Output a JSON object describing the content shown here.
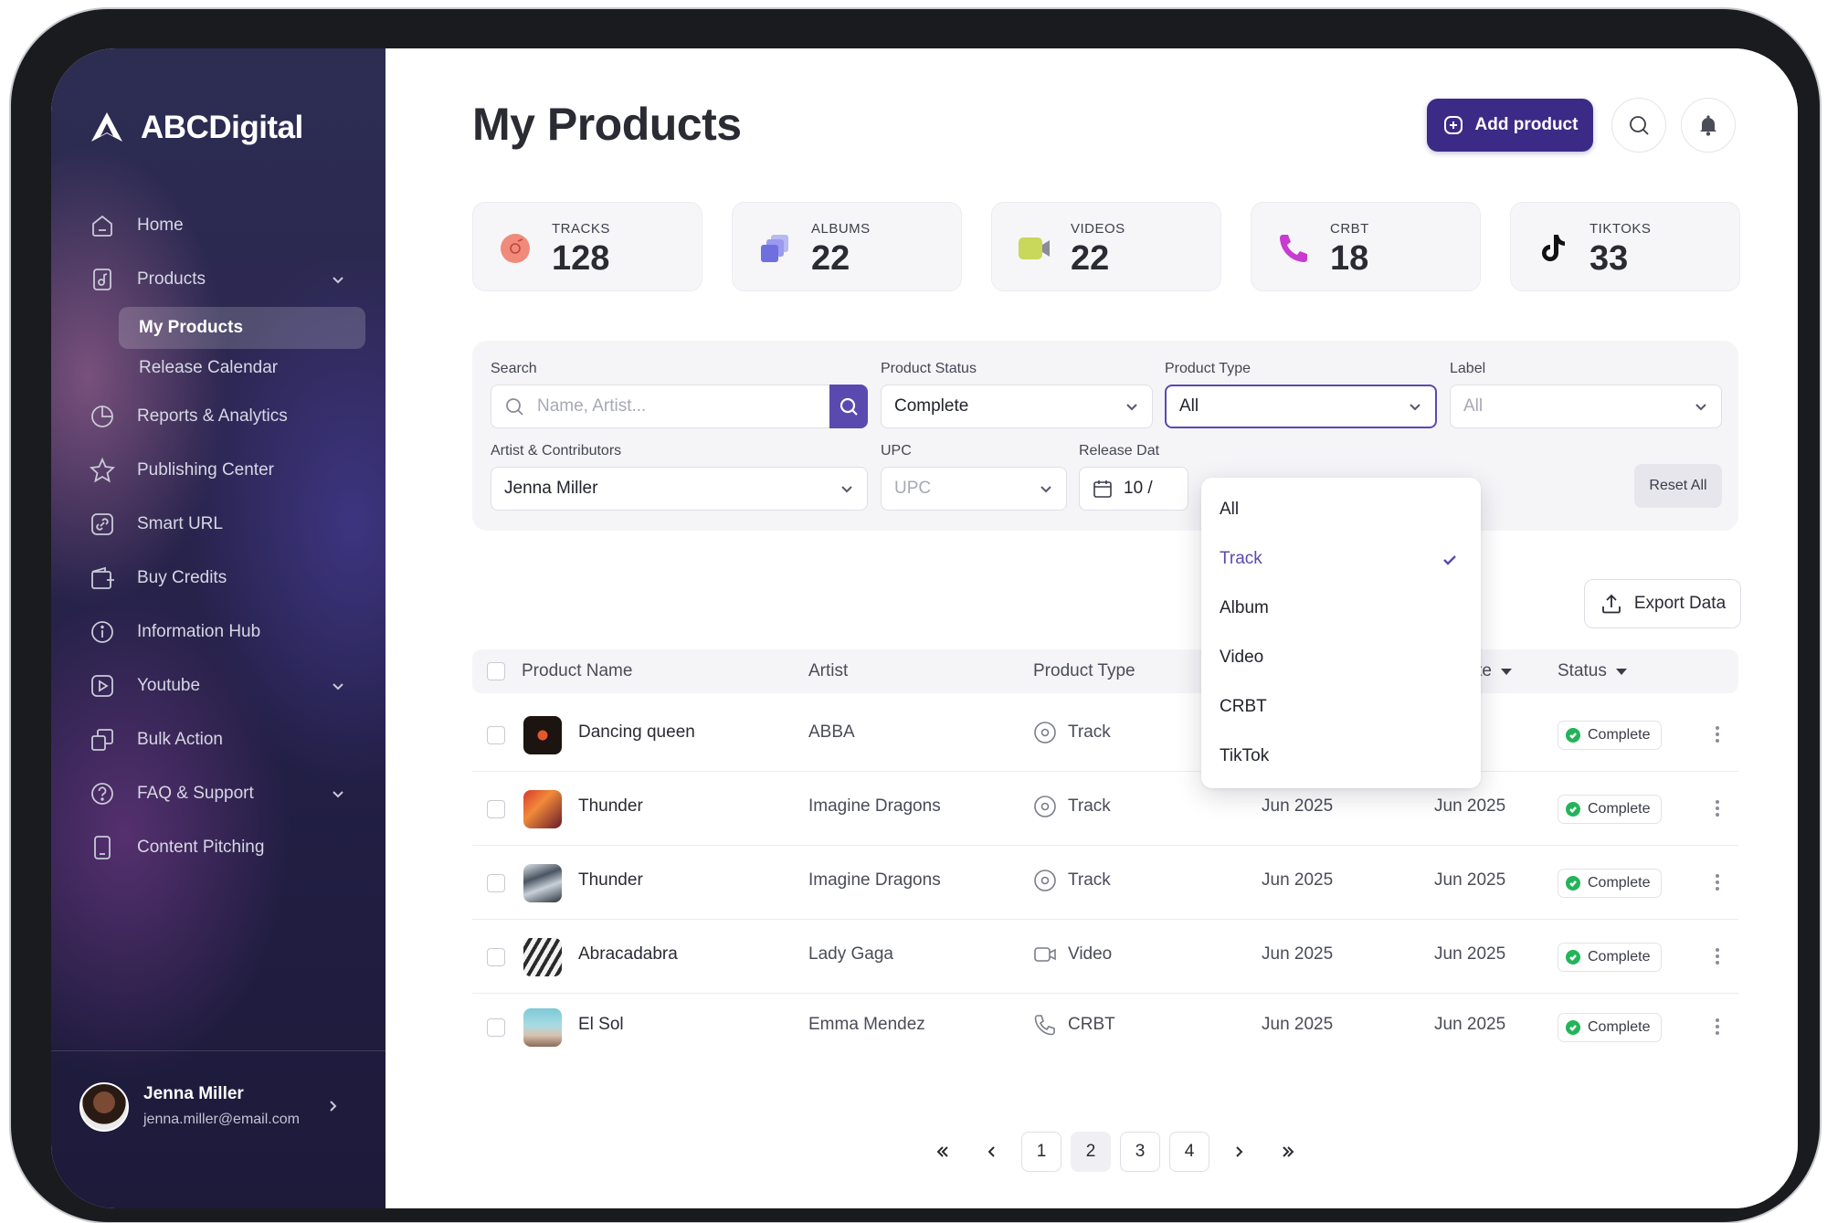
{
  "brand": {
    "name": "ABCDigital"
  },
  "sidebar": {
    "items": [
      {
        "label": "Home",
        "icon": "home-icon"
      },
      {
        "label": "Products",
        "icon": "products-icon",
        "expandable": true
      },
      {
        "label": "Reports & Analytics",
        "icon": "pie-chart-icon"
      },
      {
        "label": "Publishing Center",
        "icon": "star-icon"
      },
      {
        "label": "Smart URL",
        "icon": "link-icon"
      },
      {
        "label": "Buy Credits",
        "icon": "wallet-icon"
      },
      {
        "label": "Information Hub",
        "icon": "info-icon"
      },
      {
        "label": "Youtube",
        "icon": "play-icon",
        "expandable": true
      },
      {
        "label": "Bulk Action",
        "icon": "copy-icon"
      },
      {
        "label": "FAQ & Support",
        "icon": "question-icon",
        "expandable": true
      },
      {
        "label": "Content Pitching",
        "icon": "tablet-icon"
      }
    ],
    "sub_items": [
      {
        "label": "My Products",
        "active": true
      },
      {
        "label": "Release Calendar",
        "active": false
      }
    ],
    "user": {
      "name": "Jenna Miller",
      "email": "jenna.miller@email.com"
    }
  },
  "header": {
    "title": "My Products",
    "add_button": "Add product"
  },
  "stats": [
    {
      "label": "TRACKS",
      "value": "128",
      "icon": "disc-icon",
      "color": "#f08a7a"
    },
    {
      "label": "ALBUMS",
      "value": "22",
      "icon": "albums-icon",
      "color": "#7c7ce6"
    },
    {
      "label": "VIDEOS",
      "value": "22",
      "icon": "video-camera-icon",
      "color": "#c9d75a"
    },
    {
      "label": "CRBT",
      "value": "18",
      "icon": "phone-icon",
      "color": "#c83bd0"
    },
    {
      "label": "TIKTOKS",
      "value": "33",
      "icon": "tiktok-icon",
      "color": "#111111"
    }
  ],
  "filters": {
    "search": {
      "label": "Search",
      "placeholder": "Name, Artist..."
    },
    "product_status": {
      "label": "Product Status",
      "value": "Complete"
    },
    "product_type": {
      "label": "Product Type",
      "value": "All"
    },
    "label": {
      "label": "Label",
      "placeholder": "All"
    },
    "artist": {
      "label": "Artist & Contributors",
      "value": "Jenna Miller"
    },
    "upc": {
      "label": "UPC",
      "placeholder": "UPC"
    },
    "release_date": {
      "label": "Release Dat",
      "value": "10 /"
    },
    "reset": "Reset All"
  },
  "dropdown": {
    "options": [
      "All",
      "Track",
      "Album",
      "Video",
      "CRBT",
      "TikTok"
    ],
    "selected": "Track"
  },
  "export_button": "Export Data",
  "table": {
    "headers": {
      "name": "Product Name",
      "artist": "Artist",
      "type": "Product Type",
      "release": "d Date",
      "status": "Status"
    },
    "rows": [
      {
        "name": "Dancing queen",
        "artist": "ABBA",
        "type": "Track",
        "date1": "",
        "date2": "25",
        "status": "Complete"
      },
      {
        "name": "Thunder",
        "artist": "Imagine Dragons",
        "type": "Track",
        "date1": "Jun 2025",
        "date2": "Jun 2025",
        "status": "Complete"
      },
      {
        "name": "Thunder",
        "artist": "Imagine Dragons",
        "type": "Track",
        "date1": "Jun 2025",
        "date2": "Jun 2025",
        "status": "Complete"
      },
      {
        "name": "Abracadabra",
        "artist": "Lady Gaga",
        "type": "Video",
        "date1": "Jun 2025",
        "date2": "Jun 2025",
        "status": "Complete"
      },
      {
        "name": "El Sol",
        "artist": "Emma Mendez",
        "type": "CRBT",
        "date1": "Jun 2025",
        "date2": "Jun 2025",
        "status": "Complete"
      }
    ]
  },
  "pagination": {
    "pages": [
      "1",
      "2",
      "3",
      "4"
    ],
    "current": "2"
  }
}
